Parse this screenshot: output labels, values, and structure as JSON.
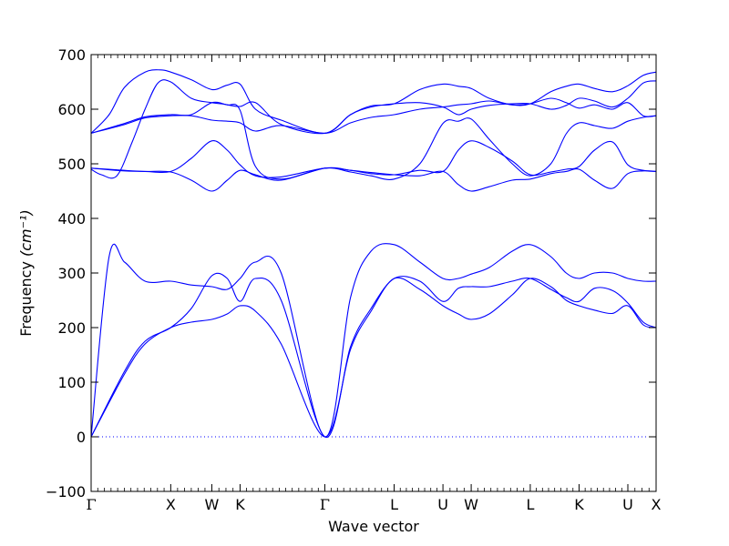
{
  "chart_data": {
    "type": "line",
    "xlabel": "Wave vector",
    "ylabel": "Frequency",
    "ylabel_unit": "(cm⁻¹)",
    "ylim": [
      -100,
      700
    ],
    "yticks": [
      -100,
      0,
      100,
      200,
      300,
      400,
      500,
      600,
      700
    ],
    "xlim": [
      0,
      22
    ],
    "grid": false,
    "line_color": "#0000ff",
    "zero_line_color": "#0000ff",
    "high_symmetry_points": [
      {
        "label": "Γ",
        "x": 0
      },
      {
        "label": "X",
        "x": 3.1
      },
      {
        "label": "W",
        "x": 4.7
      },
      {
        "label": "K",
        "x": 5.8
      },
      {
        "label": "Γ",
        "x": 9.1
      },
      {
        "label": "L",
        "x": 11.8
      },
      {
        "label": "U",
        "x": 13.7
      },
      {
        "label": "W",
        "x": 14.8
      },
      {
        "label": "L",
        "x": 17.1
      },
      {
        "label": "K",
        "x": 19.0
      },
      {
        "label": "U",
        "x": 20.9
      },
      {
        "label": "X",
        "x": 22.0
      }
    ],
    "series": [
      {
        "x": [
          0,
          1.3,
          2.1,
          3.1,
          3.9,
          4.7,
          5.3,
          5.8,
          6.4,
          7.4,
          9.1,
          10.1,
          10.9,
          11.8,
          12.8,
          13.7,
          14.3,
          14.8,
          15.5,
          16.4,
          17.1,
          17.9,
          18.5,
          19.0,
          19.6,
          20.3,
          20.9,
          21.5,
          22.0
        ],
        "y": [
          0,
          115,
          170,
          200,
          210,
          215,
          225,
          240,
          230,
          170,
          0,
          160,
          230,
          290,
          270,
          240,
          225,
          215,
          225,
          260,
          290,
          275,
          250,
          240,
          232,
          226,
          240,
          205,
          200
        ]
      },
      {
        "x": [
          0,
          1.3,
          2.1,
          3.1,
          3.9,
          4.7,
          5.3,
          5.8,
          6.4,
          7.4,
          9.1,
          10.1,
          10.9,
          11.8,
          12.8,
          13.7,
          14.3,
          14.8,
          15.5,
          16.4,
          17.1,
          17.9,
          18.5,
          19.0,
          19.6,
          20.3,
          20.9,
          21.5,
          22.0
        ],
        "y": [
          0,
          120,
          175,
          200,
          235,
          295,
          290,
          248,
          290,
          250,
          0,
          165,
          235,
          290,
          285,
          248,
          272,
          275,
          275,
          285,
          290,
          270,
          255,
          248,
          272,
          268,
          245,
          210,
          200
        ]
      },
      {
        "x": [
          0,
          0.7,
          1.3,
          2.1,
          3.1,
          3.9,
          4.7,
          5.3,
          5.8,
          6.4,
          7.4,
          9.1,
          10.1,
          10.9,
          11.8,
          12.8,
          13.7,
          14.3,
          14.8,
          15.5,
          16.4,
          17.1,
          17.9,
          18.5,
          19.0,
          19.6,
          20.3,
          20.9,
          21.5,
          22.0
        ],
        "y": [
          0,
          330,
          320,
          285,
          285,
          278,
          275,
          270,
          290,
          320,
          300,
          0,
          255,
          340,
          352,
          320,
          290,
          290,
          298,
          310,
          340,
          352,
          330,
          300,
          290,
          300,
          300,
          290,
          285,
          285
        ]
      },
      {
        "x": [
          0,
          0.7,
          1.3,
          2.1,
          3.1,
          3.9,
          4.7,
          5.3,
          5.8,
          6.4,
          7.4,
          9.1,
          10.1,
          10.9,
          11.8,
          12.8,
          13.7,
          14.3,
          14.8,
          15.5,
          16.4,
          17.1,
          17.9,
          18.5,
          19.0,
          19.6,
          20.3,
          20.9,
          21.5,
          22.0
        ],
        "y": [
          492,
          490,
          488,
          486,
          485,
          470,
          450,
          470,
          488,
          480,
          470,
          492,
          488,
          484,
          480,
          478,
          486,
          462,
          450,
          458,
          470,
          472,
          482,
          486,
          490,
          470,
          455,
          482,
          487,
          486
        ]
      },
      {
        "x": [
          0,
          0.7,
          1.3,
          2.1,
          3.1,
          3.9,
          4.7,
          5.3,
          5.8,
          6.4,
          7.4,
          9.1,
          10.1,
          10.9,
          11.8,
          12.8,
          13.7,
          14.3,
          14.8,
          15.5,
          16.4,
          17.1,
          17.9,
          18.5,
          19.0,
          19.6,
          20.3,
          20.9,
          21.5,
          22.0
        ],
        "y": [
          492,
          489,
          487,
          486,
          486,
          510,
          542,
          525,
          498,
          478,
          476,
          492,
          488,
          482,
          480,
          488,
          486,
          525,
          542,
          530,
          505,
          480,
          485,
          490,
          495,
          525,
          540,
          498,
          488,
          486
        ]
      },
      {
        "x": [
          0,
          0.4,
          1.0,
          1.6,
          2.1,
          2.6,
          3.1,
          3.9,
          4.7,
          5.3,
          5.8,
          6.4,
          7.4,
          9.1,
          10.1,
          10.9,
          11.8,
          12.8,
          13.7,
          14.3,
          14.8,
          15.5,
          16.4,
          17.1,
          17.9,
          18.5,
          19.0,
          19.6,
          20.3,
          20.9,
          21.5,
          22.0
        ],
        "y": [
          490,
          480,
          478,
          540,
          600,
          648,
          650,
          620,
          612,
          608,
          598,
          495,
          472,
          492,
          485,
          478,
          472,
          500,
          574,
          578,
          582,
          545,
          500,
          478,
          500,
          555,
          575,
          570,
          565,
          578,
          585,
          588
        ]
      },
      {
        "x": [
          0,
          1.3,
          2.1,
          3.1,
          3.9,
          4.7,
          5.3,
          5.8,
          6.4,
          7.4,
          9.1,
          10.1,
          10.9,
          11.8,
          12.8,
          13.7,
          14.3,
          14.8,
          15.5,
          16.4,
          17.1,
          17.9,
          18.5,
          19.0,
          19.6,
          20.3,
          20.9,
          21.5,
          22.0
        ],
        "y": [
          556,
          572,
          584,
          588,
          588,
          580,
          578,
          575,
          560,
          570,
          556,
          575,
          585,
          590,
          600,
          604,
          608,
          610,
          615,
          608,
          610,
          620,
          612,
          602,
          608,
          600,
          612,
          588,
          588
        ]
      },
      {
        "x": [
          0,
          1.3,
          2.1,
          3.1,
          3.9,
          4.7,
          5.3,
          5.8,
          6.4,
          7.4,
          9.1,
          10.1,
          10.9,
          11.8,
          12.8,
          13.7,
          14.3,
          14.8,
          15.5,
          16.4,
          17.1,
          17.9,
          18.5,
          19.0,
          19.6,
          20.3,
          20.9,
          21.5,
          22.0
        ],
        "y": [
          556,
          574,
          586,
          590,
          590,
          612,
          608,
          605,
          612,
          572,
          556,
          590,
          604,
          610,
          612,
          604,
          590,
          600,
          607,
          610,
          610,
          600,
          607,
          620,
          615,
          604,
          620,
          648,
          652
        ]
      },
      {
        "x": [
          0,
          0.7,
          1.3,
          2.1,
          2.7,
          3.1,
          3.9,
          4.7,
          5.3,
          5.8,
          6.4,
          7.4,
          9.1,
          10.1,
          10.9,
          11.8,
          12.8,
          13.7,
          14.3,
          14.8,
          15.5,
          16.4,
          17.1,
          17.9,
          18.5,
          19.0,
          19.6,
          20.3,
          20.9,
          21.5,
          22.0
        ],
        "y": [
          556,
          590,
          640,
          668,
          672,
          668,
          654,
          636,
          644,
          646,
          600,
          580,
          556,
          590,
          606,
          610,
          636,
          646,
          642,
          638,
          620,
          608,
          610,
          632,
          642,
          646,
          638,
          632,
          643,
          662,
          668
        ]
      }
    ]
  }
}
